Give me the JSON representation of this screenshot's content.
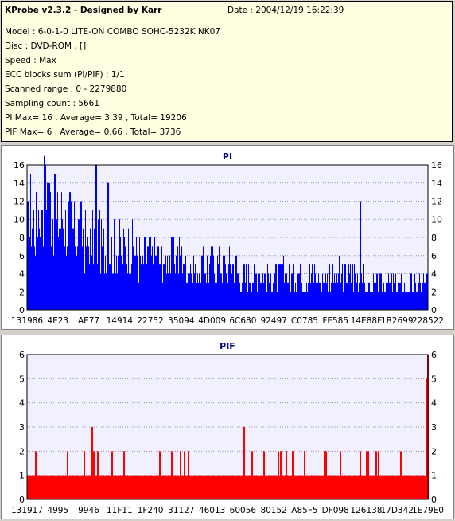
{
  "header": {
    "title": "KProbe v2.3.2 - Designed by Karr",
    "date": "Date : 2004/12/19 16:22:39",
    "model": "Model : 6-0-1-0 LITE-ON COMBO SOHC-5232K NK07",
    "disc": "Disc : DVD-ROM ,  []",
    "speed": "Speed : Max",
    "ecc": "ECC blocks sum (PI/PIF) : 1/1",
    "range": "Scanned range : 0 - 2279880",
    "sampling": "Sampling count : 5661",
    "pi_stats": "PI Max= 16 , Average= 3.39 , Total= 19206",
    "pif_stats": "PIF Max= 6 , Average= 0.66 , Total= 3736"
  },
  "colors": {
    "pi": "#0000ff",
    "pif": "#ff0000",
    "plot_bg": "#f0f0ff",
    "grid": "#9090c0"
  },
  "chart_data": [
    {
      "type": "bar",
      "title": "PI",
      "ylim": [
        0,
        16
      ],
      "yticks": [
        0,
        2,
        4,
        6,
        8,
        10,
        12,
        14,
        16
      ],
      "xtick_labels": [
        "131986",
        "4E23",
        "AE77",
        "14914",
        "22752",
        "35094",
        "4D009",
        "6C680",
        "92497",
        "C0785",
        "FE585",
        "14E88F",
        "1B2699",
        "228522"
      ],
      "profile": [
        9,
        11,
        10,
        12,
        14,
        13,
        12,
        12,
        11,
        10,
        11,
        11,
        10,
        10,
        9,
        9,
        9,
        9,
        8,
        8,
        8,
        8,
        8,
        7,
        7,
        7,
        7,
        7,
        7,
        7,
        7,
        7,
        7,
        7,
        6,
        6,
        6,
        6,
        6,
        6,
        6,
        6,
        6,
        6,
        6,
        6,
        6,
        6,
        6,
        6,
        5,
        5,
        5,
        5,
        5,
        5,
        5,
        5,
        5,
        5,
        5,
        5,
        5,
        5,
        5,
        5,
        4,
        4,
        4,
        4,
        4,
        4,
        4,
        4,
        4,
        4,
        4,
        4,
        4,
        4,
        4,
        4,
        4,
        4,
        4,
        4,
        4,
        4,
        4,
        4,
        4,
        4,
        4,
        4,
        4,
        4,
        4,
        4,
        4,
        4,
        4,
        4,
        4,
        4,
        4,
        4,
        3,
        3,
        3,
        3,
        3,
        3,
        3,
        3,
        3,
        3,
        3,
        3,
        3,
        3,
        3,
        3,
        3,
        3,
        3,
        3
      ],
      "spikes": [
        {
          "pos": 0.07,
          "value": 15
        },
        {
          "pos": 0.17,
          "value": 16
        },
        {
          "pos": 0.83,
          "value": 12
        },
        {
          "pos": 0.05,
          "value": 14
        },
        {
          "pos": 0.2,
          "value": 14
        }
      ]
    },
    {
      "type": "bar",
      "title": "PIF",
      "ylim": [
        0,
        6
      ],
      "yticks": [
        0,
        1,
        2,
        3,
        4,
        5,
        6
      ],
      "xtick_labels": [
        "131917",
        "4995",
        "9946",
        "11F11",
        "1F240",
        "31127",
        "46013",
        "60056",
        "80152",
        "A85F5",
        "DF098",
        "126138",
        "17D342",
        "1E79E0"
      ],
      "baseline": 1,
      "spikes": [
        {
          "pos": 0.02,
          "value": 2
        },
        {
          "pos": 0.1,
          "value": 2
        },
        {
          "pos": 0.14,
          "value": 2
        },
        {
          "pos": 0.16,
          "value": 3
        },
        {
          "pos": 0.165,
          "value": 2
        },
        {
          "pos": 0.175,
          "value": 2
        },
        {
          "pos": 0.21,
          "value": 2
        },
        {
          "pos": 0.24,
          "value": 2
        },
        {
          "pos": 0.33,
          "value": 2
        },
        {
          "pos": 0.36,
          "value": 2
        },
        {
          "pos": 0.38,
          "value": 2
        },
        {
          "pos": 0.39,
          "value": 2
        },
        {
          "pos": 0.4,
          "value": 2
        },
        {
          "pos": 0.54,
          "value": 3
        },
        {
          "pos": 0.56,
          "value": 2
        },
        {
          "pos": 0.59,
          "value": 2
        },
        {
          "pos": 0.625,
          "value": 2
        },
        {
          "pos": 0.63,
          "value": 2
        },
        {
          "pos": 0.645,
          "value": 2
        },
        {
          "pos": 0.66,
          "value": 2
        },
        {
          "pos": 0.69,
          "value": 2
        },
        {
          "pos": 0.74,
          "value": 2
        },
        {
          "pos": 0.745,
          "value": 2
        },
        {
          "pos": 0.78,
          "value": 2
        },
        {
          "pos": 0.83,
          "value": 2
        },
        {
          "pos": 0.845,
          "value": 2
        },
        {
          "pos": 0.85,
          "value": 2
        },
        {
          "pos": 0.87,
          "value": 2
        },
        {
          "pos": 0.875,
          "value": 2
        },
        {
          "pos": 0.93,
          "value": 2
        },
        {
          "pos": 0.995,
          "value": 5
        },
        {
          "pos": 0.998,
          "value": 6
        }
      ]
    }
  ]
}
